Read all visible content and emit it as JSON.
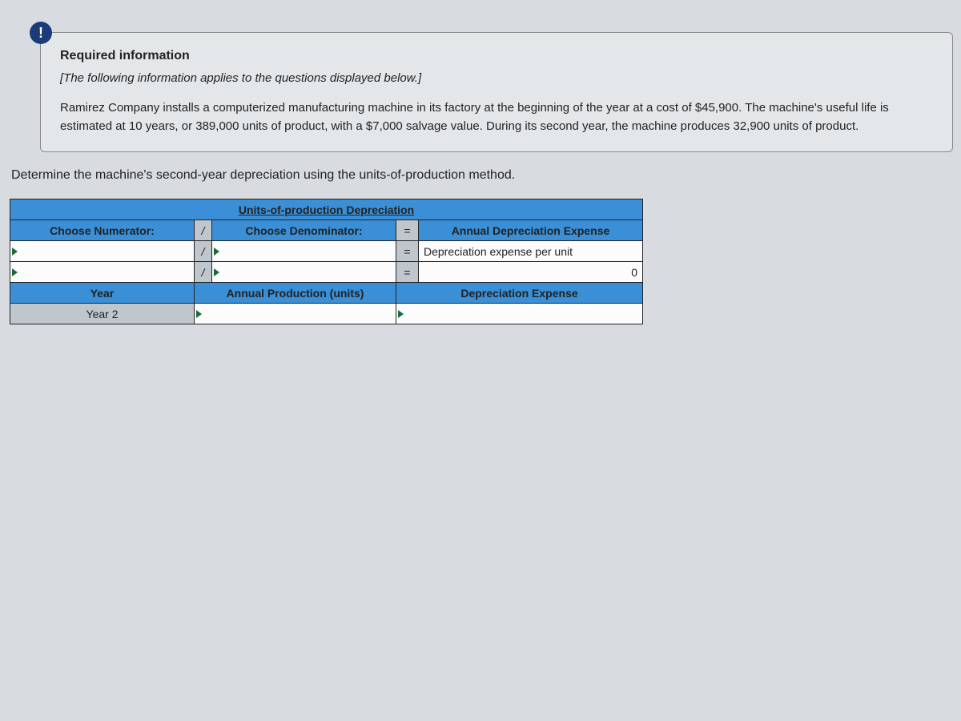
{
  "alert_icon": "!",
  "info": {
    "required_title": "Required information",
    "applies_note": "[The following information applies to the questions displayed below.]",
    "body": "Ramirez Company installs a computerized manufacturing machine in its factory at the beginning of the year at a cost of $45,900. The machine's useful life is estimated at 10 years, or 389,000 units of product, with a $7,000 salvage value. During its second year, the machine produces 32,900 units of product."
  },
  "question": "Determine the machine's second-year depreciation using the units-of-production method.",
  "table": {
    "main_header": "Units-of-production Depreciation",
    "col_numerator": "Choose Numerator:",
    "col_denominator": "Choose Denominator:",
    "col_result": "Annual Depreciation Expense",
    "divide": "/",
    "equals": "=",
    "row_perunit_label": "Depreciation expense per unit",
    "row_calc_value": "0",
    "col_year": "Year",
    "col_annual_prod": "Annual Production (units)",
    "col_dep_exp": "Depreciation Expense",
    "year2_label": "Year 2"
  },
  "colors": {
    "page_bg": "#d8dce0",
    "box_bg": "#e4e7ea",
    "header_blue": "#3a8fd6",
    "grey_cell": "#bfc7cd",
    "yellow_cell": "#f6f97a",
    "badge_bg": "#1a3a7a",
    "dropdown_arrow": "#1a6b3a",
    "border": "#222222"
  }
}
